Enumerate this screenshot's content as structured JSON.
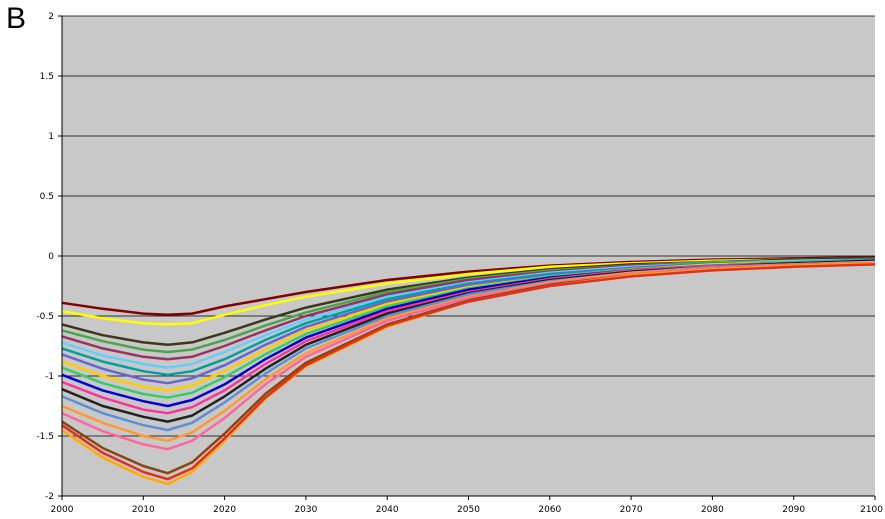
{
  "panel_label": "B",
  "chart_data": {
    "type": "line",
    "title": "",
    "xlabel": "",
    "ylabel": "",
    "xlim": [
      2000,
      2100
    ],
    "ylim": [
      -2,
      2
    ],
    "x_ticks": [
      2000,
      2010,
      2020,
      2030,
      2040,
      2050,
      2060,
      2070,
      2080,
      2090,
      2100
    ],
    "y_ticks": [
      2,
      1.5,
      1,
      0.5,
      0,
      -0.5,
      -1,
      -1.5,
      -2
    ],
    "grid": "horizontal",
    "legend": "none",
    "plot_background": "#c8c8c8",
    "x": [
      2000,
      2005,
      2010,
      2013,
      2016,
      2020,
      2025,
      2030,
      2040,
      2050,
      2060,
      2070,
      2080,
      2090,
      2100
    ],
    "series": [
      {
        "color": "#800000",
        "values": [
          -0.39,
          -0.44,
          -0.48,
          -0.49,
          -0.48,
          -0.42,
          -0.36,
          -0.3,
          -0.2,
          -0.13,
          -0.08,
          -0.05,
          -0.03,
          -0.02,
          -0.01
        ]
      },
      {
        "color": "#ffff00",
        "values": [
          -0.46,
          -0.52,
          -0.56,
          -0.57,
          -0.56,
          -0.49,
          -0.41,
          -0.34,
          -0.23,
          -0.15,
          -0.09,
          -0.06,
          -0.04,
          -0.03,
          -0.02
        ]
      },
      {
        "color": "#3a3a1a",
        "values": [
          -0.57,
          -0.66,
          -0.72,
          -0.74,
          -0.72,
          -0.64,
          -0.53,
          -0.43,
          -0.28,
          -0.18,
          -0.11,
          -0.07,
          -0.05,
          -0.03,
          -0.02
        ]
      },
      {
        "color": "#4aa54a",
        "values": [
          -0.62,
          -0.71,
          -0.78,
          -0.8,
          -0.78,
          -0.7,
          -0.58,
          -0.47,
          -0.3,
          -0.19,
          -0.12,
          -0.08,
          -0.05,
          -0.04,
          -0.03
        ]
      },
      {
        "color": "#993366",
        "values": [
          -0.67,
          -0.77,
          -0.84,
          -0.86,
          -0.84,
          -0.75,
          -0.62,
          -0.5,
          -0.32,
          -0.2,
          -0.13,
          -0.08,
          -0.06,
          -0.04,
          -0.03
        ]
      },
      {
        "color": "#66ccff",
        "values": [
          -0.72,
          -0.83,
          -0.9,
          -0.93,
          -0.9,
          -0.8,
          -0.66,
          -0.53,
          -0.34,
          -0.22,
          -0.14,
          -0.09,
          -0.06,
          -0.04,
          -0.03
        ]
      },
      {
        "color": "#00a0a0",
        "values": [
          -0.77,
          -0.88,
          -0.96,
          -0.99,
          -0.96,
          -0.86,
          -0.7,
          -0.56,
          -0.36,
          -0.23,
          -0.15,
          -0.1,
          -0.06,
          -0.05,
          -0.03
        ]
      },
      {
        "color": "#6666cc",
        "values": [
          -0.82,
          -0.94,
          -1.03,
          -1.06,
          -1.02,
          -0.91,
          -0.74,
          -0.59,
          -0.38,
          -0.24,
          -0.16,
          -0.1,
          -0.07,
          -0.05,
          -0.04
        ]
      },
      {
        "color": "#ffcc00",
        "values": [
          -0.88,
          -1.0,
          -1.09,
          -1.12,
          -1.08,
          -0.96,
          -0.78,
          -0.62,
          -0.4,
          -0.26,
          -0.17,
          -0.11,
          -0.07,
          -0.05,
          -0.04
        ]
      },
      {
        "color": "#33cc66",
        "values": [
          -0.93,
          -1.06,
          -1.15,
          -1.18,
          -1.14,
          -1.01,
          -0.82,
          -0.65,
          -0.42,
          -0.27,
          -0.17,
          -0.11,
          -0.08,
          -0.05,
          -0.04
        ]
      },
      {
        "color": "#0000cc",
        "values": [
          -0.99,
          -1.12,
          -1.21,
          -1.25,
          -1.2,
          -1.07,
          -0.86,
          -0.68,
          -0.44,
          -0.28,
          -0.18,
          -0.12,
          -0.08,
          -0.06,
          -0.04
        ]
      },
      {
        "color": "#ff3399",
        "values": [
          -1.05,
          -1.18,
          -1.28,
          -1.31,
          -1.26,
          -1.12,
          -0.9,
          -0.71,
          -0.46,
          -0.3,
          -0.19,
          -0.12,
          -0.08,
          -0.06,
          -0.05
        ]
      },
      {
        "color": "#222222",
        "values": [
          -1.11,
          -1.25,
          -1.34,
          -1.38,
          -1.33,
          -1.17,
          -0.94,
          -0.74,
          -0.48,
          -0.31,
          -0.2,
          -0.13,
          -0.09,
          -0.06,
          -0.05
        ]
      },
      {
        "color": "#5b8fd6",
        "values": [
          -1.17,
          -1.31,
          -1.41,
          -1.45,
          -1.39,
          -1.22,
          -0.98,
          -0.77,
          -0.5,
          -0.32,
          -0.21,
          -0.14,
          -0.09,
          -0.07,
          -0.05
        ]
      },
      {
        "color": "#ff9933",
        "values": [
          -1.25,
          -1.39,
          -1.5,
          -1.54,
          -1.47,
          -1.29,
          -1.03,
          -0.81,
          -0.52,
          -0.34,
          -0.22,
          -0.14,
          -0.1,
          -0.07,
          -0.05
        ]
      },
      {
        "color": "#ff6699",
        "values": [
          -1.31,
          -1.46,
          -1.57,
          -1.61,
          -1.54,
          -1.35,
          -1.07,
          -0.84,
          -0.54,
          -0.35,
          -0.23,
          -0.15,
          -0.1,
          -0.07,
          -0.06
        ]
      },
      {
        "color": "#8b4513",
        "values": [
          -1.38,
          -1.6,
          -1.75,
          -1.81,
          -1.72,
          -1.48,
          -1.15,
          -0.89,
          -0.57,
          -0.37,
          -0.24,
          -0.16,
          -0.11,
          -0.08,
          -0.06
        ]
      },
      {
        "color": "#ffaa00",
        "values": [
          -1.45,
          -1.68,
          -1.84,
          -1.9,
          -1.8,
          -1.54,
          -1.19,
          -0.92,
          -0.59,
          -0.38,
          -0.25,
          -0.16,
          -0.11,
          -0.08,
          -0.06
        ]
      },
      {
        "color": "#e03020",
        "values": [
          -1.41,
          -1.64,
          -1.8,
          -1.86,
          -1.77,
          -1.52,
          -1.18,
          -0.91,
          -0.58,
          -0.38,
          -0.25,
          -0.17,
          -0.12,
          -0.09,
          -0.07
        ]
      }
    ]
  }
}
